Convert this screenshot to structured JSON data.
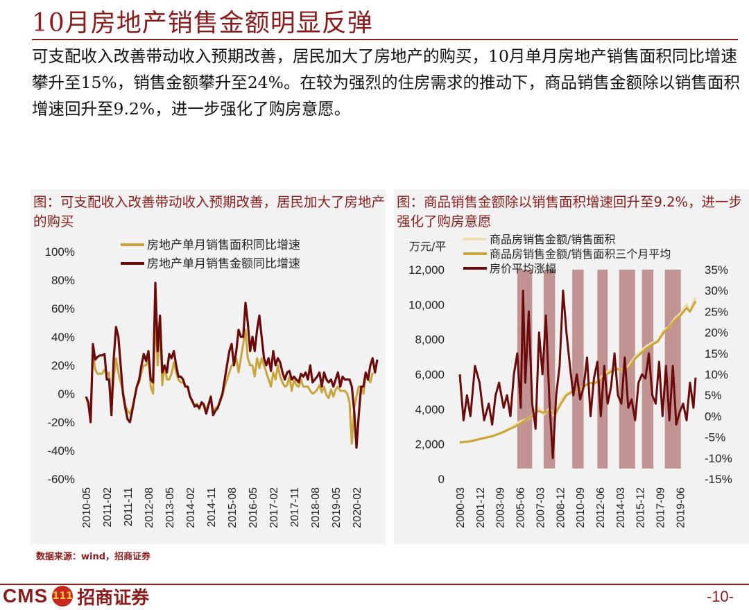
{
  "title": "10月房地产销售金额明显反弹",
  "summary": "可支配收入改善带动收入预期改善，居民加大了房地产的购买，10月单月房地产销售面积同比增速攀升至15%，销售金额攀升至24%。在较为强烈的住房需求的推动下，商品销售金额除以销售面积增速回升至9.2%，进一步强化了购房意愿。",
  "source": "数据来源：wind，招商证券",
  "footer": {
    "logo_text": "CMS",
    "logo_cn": "招商证券",
    "page": "-10-"
  },
  "colors": {
    "brand": "#8a1c1c",
    "gold": "#c9a43a",
    "dark_red": "#6b0a0a",
    "shade": "#b88383"
  },
  "chart_data": [
    {
      "type": "line",
      "title": "图：可支配收入改善带动收入预期改善，居民加大了房地产的购买",
      "x_ticks": [
        "2010-05",
        "2011-02",
        "2011-11",
        "2012-08",
        "2013-05",
        "2014-02",
        "2014-11",
        "2015-08",
        "2016-05",
        "2017-02",
        "2017-11",
        "2018-08",
        "2019-05",
        "2020-02"
      ],
      "y_ticks": [
        "100%",
        "80%",
        "60%",
        "40%",
        "20%",
        "0%",
        "-20%",
        "-40%",
        "-60%"
      ],
      "ylim": [
        -60,
        100
      ],
      "x_count": 127,
      "series": [
        {
          "name": "房地产单月销售面积同比增速",
          "color": "#c9a43a",
          "values": [
            -2,
            -8,
            -16,
            30,
            17,
            14,
            14,
            14,
            17,
            14,
            15,
            -10,
            11,
            25,
            15,
            8,
            2,
            -8,
            -12,
            -14,
            -10,
            -3,
            5,
            8,
            15,
            20,
            20,
            25,
            5,
            0,
            55,
            20,
            48,
            6,
            20,
            10,
            10,
            14,
            22,
            15,
            10,
            8,
            8,
            5,
            5,
            -2,
            -6,
            -8,
            -7,
            -11,
            -6,
            -7,
            -12,
            -7,
            -3,
            -12,
            -10,
            -9,
            -6,
            -1,
            5,
            10,
            15,
            20,
            20,
            25,
            15,
            25,
            35,
            45,
            25,
            20,
            20,
            12,
            25,
            18,
            25,
            20,
            15,
            10,
            5,
            15,
            10,
            20,
            12,
            8,
            5,
            6,
            12,
            2,
            10,
            6,
            5,
            10,
            5,
            5,
            5,
            2,
            0,
            1,
            3,
            6,
            1,
            5,
            -1,
            -3,
            3,
            -2,
            3,
            5,
            2,
            2,
            2,
            0,
            -6,
            -35,
            -10,
            -2,
            5,
            5,
            0,
            12,
            10,
            8,
            15
          ]
        },
        {
          "name": "房地产单月销售金额同比增速",
          "color": "#6b0a0a",
          "values": [
            -2,
            -6,
            -20,
            35,
            24,
            26,
            27,
            27,
            28,
            10,
            10,
            -15,
            25,
            47,
            40,
            20,
            0,
            -10,
            -18,
            -20,
            -12,
            -3,
            5,
            10,
            20,
            28,
            23,
            30,
            10,
            8,
            78,
            30,
            55,
            15,
            20,
            15,
            28,
            25,
            30,
            20,
            12,
            12,
            10,
            5,
            5,
            -2,
            -5,
            -9,
            -8,
            -10,
            -6,
            -8,
            -14,
            -8,
            -2,
            -15,
            -12,
            -10,
            -5,
            0,
            10,
            20,
            30,
            35,
            20,
            30,
            45,
            40,
            40,
            64,
            50,
            30,
            40,
            30,
            45,
            55,
            40,
            25,
            20,
            25,
            16,
            30,
            20,
            25,
            22,
            15,
            10,
            15,
            16,
            10,
            12,
            10,
            8,
            14,
            12,
            15,
            10,
            20,
            8,
            10,
            12,
            15,
            5,
            15,
            10,
            8,
            10,
            5,
            10,
            15,
            5,
            12,
            10,
            10,
            10,
            5,
            -12,
            -38,
            -15,
            5,
            5,
            15,
            10,
            20,
            25,
            15,
            24
          ]
        }
      ]
    },
    {
      "type": "line",
      "title": "图：商品销售金额除以销售面积增速回升至9.2%，进一步强化了购房意愿",
      "ylabel_left": "万元/平",
      "x_ticks": [
        "2000-03",
        "2001-12",
        "2003-09",
        "2005-06",
        "2007-03",
        "2008-12",
        "2010-09",
        "2012-06",
        "2014-03",
        "2015-12",
        "2017-09",
        "2019-06"
      ],
      "y_ticks_left": [
        "12,000",
        "10,000",
        "8,000",
        "6,000",
        "4,000",
        "2,000",
        "0"
      ],
      "y_ticks_right": [
        "35%",
        "30%",
        "25%",
        "20%",
        "15%",
        "10%",
        "5%",
        "0%",
        "-5%",
        "-10%",
        "-15%"
      ],
      "ylim_left": [
        0,
        12000
      ],
      "ylim_right": [
        -15,
        35
      ],
      "x_range": [
        2000.17,
        2020.79
      ],
      "shaded_periods": [
        [
          2005.2,
          2006.5
        ],
        [
          2007.5,
          2008.5
        ],
        [
          2010.0,
          2011.0
        ],
        [
          2012.2,
          2013.1
        ],
        [
          2014.1,
          2015.5
        ],
        [
          2016.1,
          2017.1
        ],
        [
          2018.1,
          2019.5
        ]
      ],
      "series": [
        {
          "name": "商品房销售金额/销售面积",
          "color": "#efdfae",
          "x": [
            2000.17,
            2001,
            2002,
            2003,
            2004,
            2004.5,
            2005,
            2005.5,
            2006,
            2006.5,
            2007,
            2007.5,
            2008,
            2008.5,
            2009,
            2009.5,
            2010,
            2010.5,
            2011,
            2011.5,
            2012,
            2012.5,
            2013,
            2013.5,
            2014,
            2014.5,
            2015,
            2015.5,
            2016,
            2016.5,
            2017,
            2017.5,
            2018,
            2018.5,
            2019,
            2019.5,
            2020,
            2020.3,
            2020.79
          ],
          "values": [
            2100,
            2150,
            2300,
            2450,
            2700,
            2900,
            3100,
            3300,
            3400,
            3600,
            4100,
            3700,
            4000,
            3600,
            4500,
            4900,
            5000,
            5100,
            5300,
            5500,
            5500,
            5800,
            6100,
            6300,
            6300,
            6200,
            6500,
            7000,
            7300,
            7600,
            7800,
            7900,
            8500,
            8700,
            9200,
            9500,
            10000,
            9600,
            10400
          ]
        },
        {
          "name": "商品房销售金额/销售面积三个月平均",
          "color": "#c9a43a",
          "x": [
            2000.17,
            2001,
            2002,
            2003,
            2004,
            2004.5,
            2005,
            2005.5,
            2006,
            2006.5,
            2007,
            2007.5,
            2008,
            2008.5,
            2009,
            2009.5,
            2010,
            2010.5,
            2011,
            2011.5,
            2012,
            2012.5,
            2013,
            2013.5,
            2014,
            2014.5,
            2015,
            2015.5,
            2016,
            2016.5,
            2017,
            2017.5,
            2018,
            2018.5,
            2019,
            2019.5,
            2020,
            2020.3,
            2020.79
          ],
          "values": [
            2100,
            2150,
            2300,
            2450,
            2700,
            2850,
            3000,
            3200,
            3400,
            3600,
            3900,
            3800,
            3900,
            3700,
            4300,
            4800,
            5000,
            5100,
            5300,
            5500,
            5500,
            5700,
            6000,
            6200,
            6300,
            6200,
            6400,
            6900,
            7200,
            7500,
            7700,
            7900,
            8400,
            8700,
            9100,
            9400,
            9800,
            9600,
            10200
          ]
        },
        {
          "name": "房价平均涨幅",
          "color": "#6b0a0a",
          "axis": "right",
          "x": [
            2000.17,
            2000.5,
            2000.8,
            2001.1,
            2001.5,
            2001.9,
            2002.3,
            2002.7,
            2003.0,
            2003.3,
            2003.6,
            2004.0,
            2004.3,
            2004.6,
            2004.9,
            2005.2,
            2005.5,
            2005.7,
            2005.9,
            2006.2,
            2006.5,
            2006.8,
            2007.1,
            2007.4,
            2007.7,
            2008.0,
            2008.3,
            2008.6,
            2008.9,
            2009.2,
            2009.5,
            2009.8,
            2010.1,
            2010.4,
            2010.7,
            2011.0,
            2011.3,
            2011.6,
            2011.9,
            2012.2,
            2012.5,
            2012.8,
            2013.1,
            2013.4,
            2013.7,
            2014.0,
            2014.3,
            2014.6,
            2014.9,
            2015.2,
            2015.5,
            2015.8,
            2016.1,
            2016.4,
            2016.7,
            2017.0,
            2017.3,
            2017.6,
            2017.9,
            2018.2,
            2018.5,
            2018.8,
            2019.1,
            2019.4,
            2019.7,
            2020.0,
            2020.3,
            2020.6,
            2020.79
          ],
          "values": [
            10,
            -1,
            5,
            0,
            12,
            8,
            -1,
            3,
            -2,
            5,
            8,
            2,
            5,
            0,
            10,
            15,
            2,
            30,
            8,
            25,
            3,
            -3,
            20,
            10,
            24,
            4,
            -10,
            5,
            12,
            30,
            20,
            12,
            5,
            10,
            4,
            7,
            14,
            0,
            9,
            13,
            0,
            12,
            3,
            7,
            15,
            5,
            3,
            14,
            2,
            4,
            -1,
            8,
            10,
            9,
            15,
            5,
            3,
            13,
            0,
            12,
            -1,
            12,
            -2,
            1,
            3,
            -1,
            8,
            2,
            9.2
          ]
        }
      ]
    }
  ]
}
